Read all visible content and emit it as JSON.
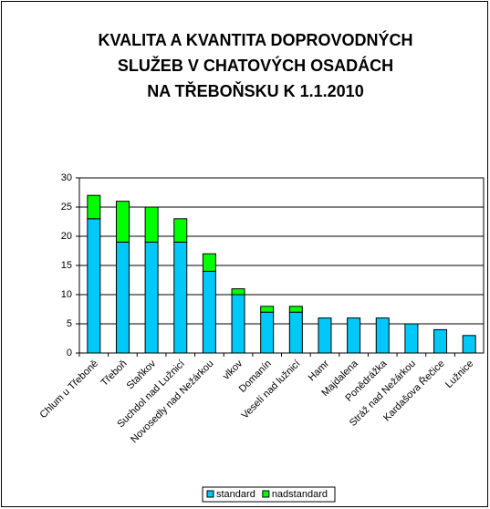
{
  "chart_data": {
    "type": "stacked_bar",
    "title": [
      "KVALITA A KVANTITA DOPROVODNÝCH",
      "SLUŽEB V CHATOVÝCH OSADÁCH",
      "NA TŘEBOŇSKU K 1.1.2010"
    ],
    "categories": [
      "Chlum u Třeboně",
      "Třeboň",
      "Staňkov",
      "Suchdol nad Lužnicí",
      "Novosedly nad Nežárkou",
      "vlkov",
      "Domanín",
      "Veselí nad lužnicí",
      "Hamr",
      "Majdalena",
      "Ponědrážka",
      "Stráž nad Nežárkou",
      "Kardašova Řečice",
      "Lužnice"
    ],
    "series": [
      {
        "name": "standard",
        "color": "#00c8f8",
        "values": [
          23,
          19,
          19,
          19,
          14,
          10,
          7,
          7,
          6,
          6,
          6,
          5,
          4,
          3
        ]
      },
      {
        "name": "nadstandard",
        "color": "#00ff00",
        "values": [
          4,
          7,
          6,
          4,
          3,
          1,
          1,
          1,
          0,
          0,
          0,
          0,
          0,
          0
        ]
      }
    ],
    "ylim": [
      0,
      30
    ],
    "yticks": [
      0,
      5,
      10,
      15,
      20,
      25,
      30
    ],
    "grid": true,
    "legend": "bottom"
  }
}
